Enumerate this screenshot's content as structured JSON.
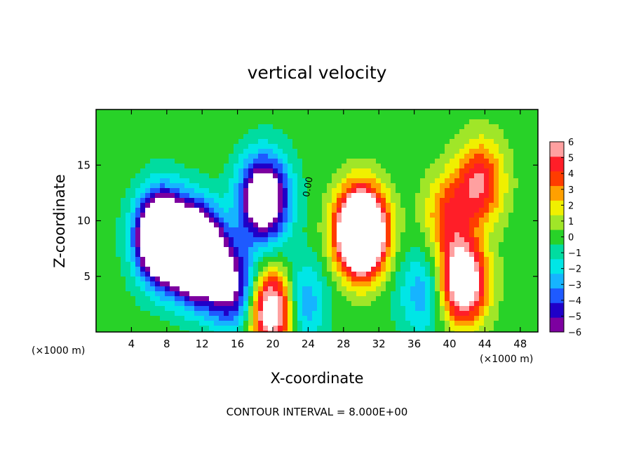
{
  "chart_data": {
    "type": "heatmap",
    "title": "vertical velocity",
    "xlabel": "X-coordinate",
    "ylabel": "Z-coordinate",
    "x_units": "(×1000 m)",
    "y_units": "(×1000 m)",
    "xlim": [
      0,
      50
    ],
    "ylim": [
      0,
      20
    ],
    "x_ticks": [
      4,
      8,
      12,
      16,
      20,
      24,
      28,
      32,
      36,
      40,
      44,
      48
    ],
    "y_ticks": [
      5,
      10,
      15
    ],
    "colorbar": {
      "ticks": [
        6,
        5,
        4,
        3,
        2,
        1,
        0,
        -1,
        -2,
        -3,
        -4,
        -5,
        -6
      ],
      "tick_labels": [
        "6",
        "5",
        "4",
        "3",
        "2",
        "1",
        "0",
        "−1",
        "−2",
        "−3",
        "−4",
        "−5",
        "−6"
      ],
      "min": -6,
      "max": 6,
      "colors": [
        "#7d00a0",
        "#2000c8",
        "#1e5aff",
        "#16b4ff",
        "#00e6e6",
        "#00dca0",
        "#28d228",
        "#a0e628",
        "#f0f000",
        "#ffa000",
        "#ff3c00",
        "#ff1e28",
        "#ffa0a0"
      ]
    },
    "contour_label": "0.00",
    "contour_interval_text": "CONTOUR INTERVAL = 8.000E+00",
    "features": [
      {
        "kind": "downdraft",
        "x": 7.5,
        "z": 8.5,
        "w": -14
      },
      {
        "kind": "downdraft",
        "x": 11.5,
        "z": 7.0,
        "w": -14
      },
      {
        "kind": "downdraft",
        "x": 19,
        "z": 12.0,
        "w": -9
      },
      {
        "kind": "downdraft",
        "x": 15.5,
        "z": 4.0,
        "w": -6
      },
      {
        "kind": "downdraft",
        "x": 23,
        "z": 2.5,
        "w": -4
      },
      {
        "kind": "downdraft",
        "x": 37,
        "z": 3.5,
        "w": -3
      },
      {
        "kind": "updraft",
        "x": 20,
        "z": 2.0,
        "w": 9
      },
      {
        "kind": "updraft",
        "x": 30,
        "z": 9.0,
        "w": 16
      },
      {
        "kind": "updraft",
        "x": 41.5,
        "z": 4.5,
        "w": 9
      },
      {
        "kind": "updraft",
        "x": 43.5,
        "z": 13.5,
        "w": 5
      },
      {
        "kind": "updraft",
        "x": 40,
        "z": 10.5,
        "w": 4
      }
    ]
  }
}
